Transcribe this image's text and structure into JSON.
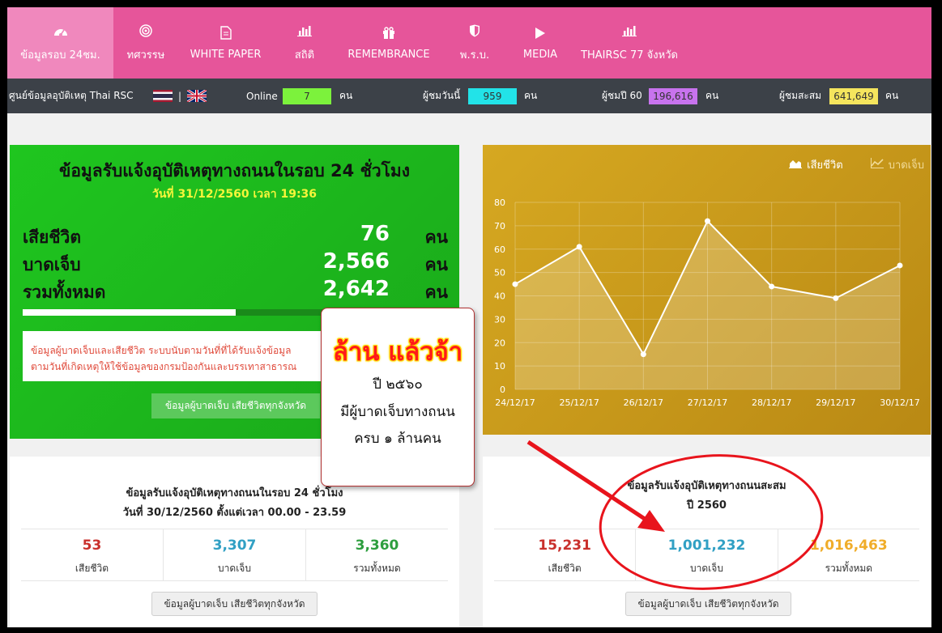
{
  "nav": {
    "items": [
      {
        "label": "ข้อมูลรอบ 24ชม.",
        "icon": "dashboard-icon",
        "active": true
      },
      {
        "label": "ทศวรรษ",
        "icon": "target-icon"
      },
      {
        "label": "WHITE PAPER",
        "icon": "document-icon"
      },
      {
        "label": "สถิติ",
        "icon": "bar-chart-icon"
      },
      {
        "label": "REMEMBRANCE",
        "icon": "gift-icon"
      },
      {
        "label": "พ.ร.บ.",
        "icon": "shield-icon"
      },
      {
        "label": "MEDIA",
        "icon": "play-icon"
      },
      {
        "label": "THAIRSC 77 จังหวัด",
        "icon": "bar-chart-icon"
      }
    ]
  },
  "status": {
    "site_name": "ศูนย์ข้อมูลอุบัติเหตุ Thai RSC",
    "separator": "|",
    "online_label": "Online",
    "online_value": "7",
    "unit": "คน",
    "today_label": "ผู้ชมวันนี้",
    "today_value": "959",
    "year_label": "ผู้ชมปี 60",
    "year_value": "196,616",
    "total_label": "ผู้ชมสะสม",
    "total_value": "641,649",
    "colors": {
      "online": "#7cf23c",
      "today": "#22e3e8",
      "year": "#c873ee",
      "total": "#f5e55d"
    }
  },
  "green_card": {
    "title": "ข้อมูลรับแจ้งอุบัติเหตุทางถนนในรอบ 24 ชั่วโมง",
    "date": "วันที่ 31/12/2560 เวลา 19:36",
    "rows": [
      {
        "label": "เสียชีวิต",
        "value": "76",
        "unit": "คน"
      },
      {
        "label": "บาดเจ็บ",
        "value": "2,566",
        "unit": "คน"
      },
      {
        "label": "รวมทั้งหมด",
        "value": "2,642",
        "unit": "คน"
      }
    ],
    "progress": 0.5,
    "notice_line1": "ข้อมูลผู้บาดเจ็บและเสียชีวิต ระบบนับตามวันที่ที่ได้รับแจ้งข้อมูล",
    "notice_line2": "ตามวันที่เกิดเหตุให้ใช้ข้อมูลของกรมป้องกันและบรรเทาสาธารณ",
    "button_label": "ข้อมูลผู้บาดเจ็บ เสียชีวิตทุกจังหวัด"
  },
  "chart_card": {
    "tab_active": "เสียชีวิต",
    "tab_inactive": "บาดเจ็บ"
  },
  "chart_data": {
    "type": "area",
    "categories": [
      "24/12/17",
      "25/12/17",
      "26/12/17",
      "27/12/17",
      "28/12/17",
      "29/12/17",
      "30/12/17"
    ],
    "series": [
      {
        "name": "เสียชีวิต",
        "values": [
          45,
          61,
          15,
          72,
          44,
          39,
          53
        ]
      }
    ],
    "ylim": [
      0,
      80
    ],
    "yticks": [
      "0",
      "10",
      "20",
      "30",
      "40",
      "50",
      "60",
      "70",
      "80"
    ],
    "grid": true
  },
  "daily_card": {
    "title1": "ข้อมูลรับแจ้งอุบัติเหตุทางถนนในรอบ 24 ชั่วโมง",
    "title2": "วันที่ 30/12/2560 ตั้งแต่เวลา 00.00 - 23.59",
    "stats": [
      {
        "value": "53",
        "label": "เสียชีวิต",
        "color": "#c9302c"
      },
      {
        "value": "3,307",
        "label": "บาดเจ็บ",
        "color": "#31a0c4"
      },
      {
        "value": "3,360",
        "label": "รวมทั้งหมด",
        "color": "#2d9e3e"
      }
    ],
    "button_label": "ข้อมูลผู้บาดเจ็บ เสียชีวิตทุกจังหวัด"
  },
  "year_card": {
    "title1": "ข้อมูลรับแจ้งอุบัติเหตุทางถนนสะสม",
    "title2": "ปี 2560",
    "stats": [
      {
        "value": "15,231",
        "label": "เสียชีวิต",
        "color": "#c9302c"
      },
      {
        "value": "1,001,232",
        "label": "บาดเจ็บ",
        "color": "#31a0c4"
      },
      {
        "value": "1,016,463",
        "label": "รวมทั้งหมด",
        "color": "#f0ad2a"
      }
    ],
    "button_label": "ข้อมูลผู้บาดเจ็บ เสียชีวิตทุกจังหวัด"
  },
  "overlay": {
    "headline": "ล้าน แล้วจ้า",
    "line1": "ปี ๒๕๖๐",
    "line2": "มีผู้บาดเจ็บทางถนน",
    "line3": "ครบ ๑ ล้านคน",
    "accent_color": "#ff1a1a"
  }
}
